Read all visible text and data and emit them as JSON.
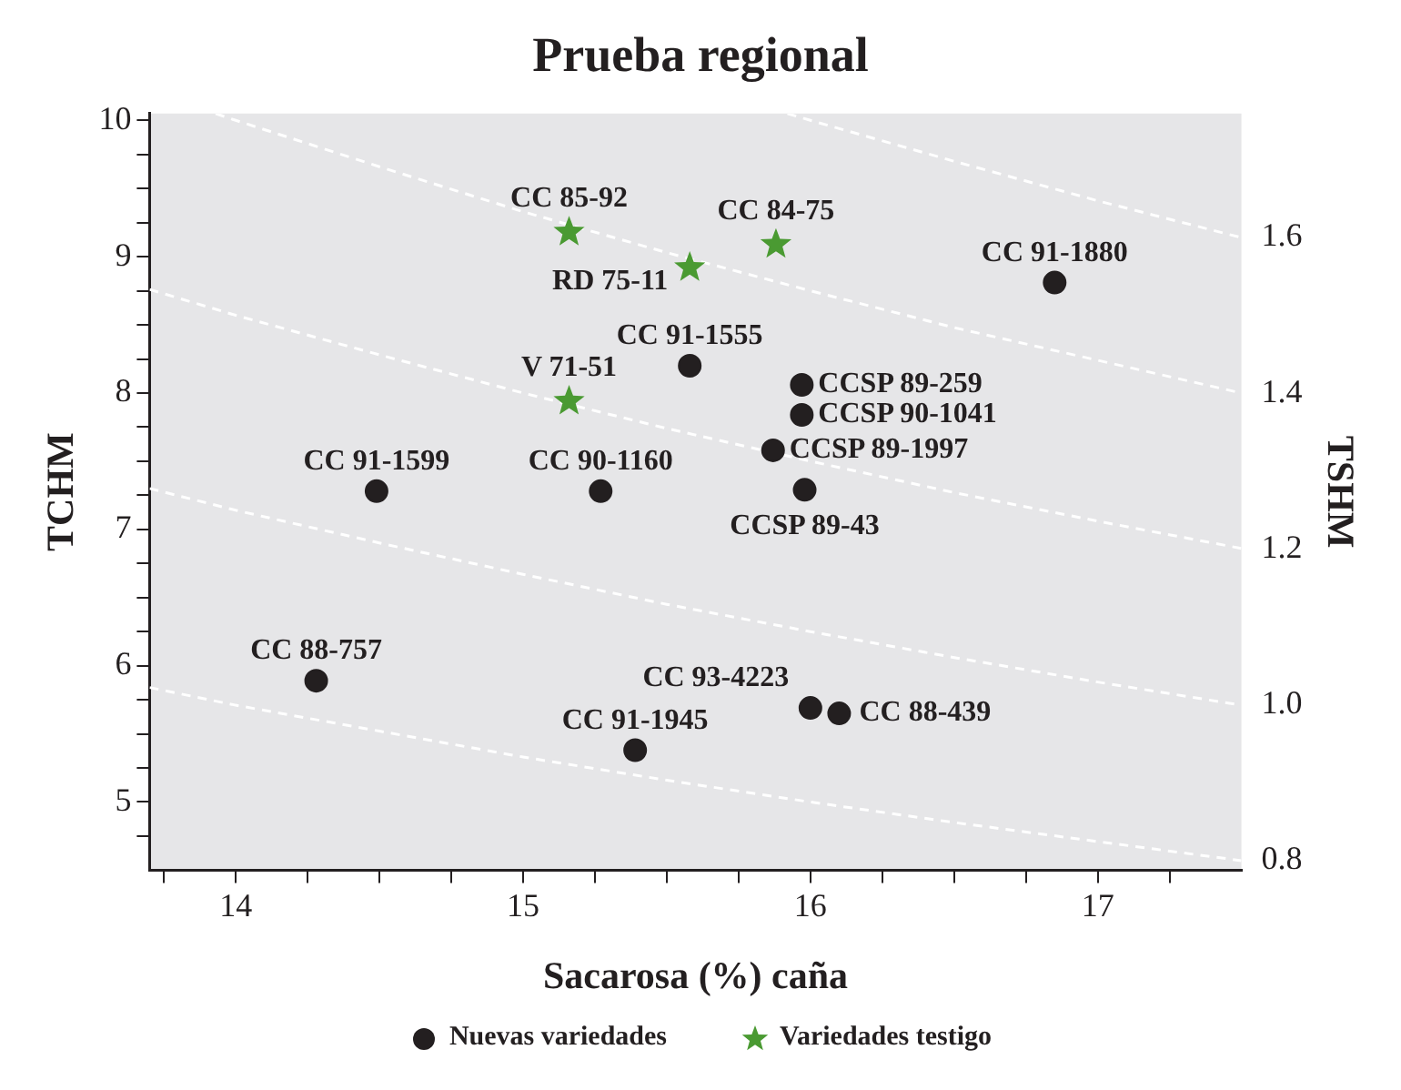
{
  "chart_data": {
    "type": "scatter",
    "title": "Prueba regional",
    "xlabel": "Sacarosa (%) caña",
    "ylabel": "TCHM",
    "y2label": "TSHM",
    "xlim": [
      13.7,
      17.5
    ],
    "xticks": [
      {
        "value": 13.75,
        "label": null
      },
      {
        "value": 14,
        "label": "14"
      },
      {
        "value": 14.25,
        "label": null
      },
      {
        "value": 14.5,
        "label": null
      },
      {
        "value": 14.75,
        "label": null
      },
      {
        "value": 15,
        "label": "15"
      },
      {
        "value": 15.25,
        "label": null
      },
      {
        "value": 15.5,
        "label": null
      },
      {
        "value": 15.75,
        "label": null
      },
      {
        "value": 16,
        "label": "16"
      },
      {
        "value": 16.25,
        "label": null
      },
      {
        "value": 16.5,
        "label": null
      },
      {
        "value": 16.75,
        "label": null
      },
      {
        "value": 17,
        "label": "17"
      },
      {
        "value": 17.25,
        "label": null
      }
    ],
    "ylim": [
      4.5,
      10.05
    ],
    "yticks": [
      {
        "value": 4.75,
        "label": null
      },
      {
        "value": 5,
        "label": "5"
      },
      {
        "value": 5.25,
        "label": null
      },
      {
        "value": 5.5,
        "label": null
      },
      {
        "value": 5.75,
        "label": null
      },
      {
        "value": 6,
        "label": "6"
      },
      {
        "value": 6.25,
        "label": null
      },
      {
        "value": 6.5,
        "label": null
      },
      {
        "value": 6.75,
        "label": null
      },
      {
        "value": 7,
        "label": "7"
      },
      {
        "value": 7.25,
        "label": null
      },
      {
        "value": 7.5,
        "label": null
      },
      {
        "value": 7.75,
        "label": null
      },
      {
        "value": 8,
        "label": "8"
      },
      {
        "value": 8.25,
        "label": null
      },
      {
        "value": 8.5,
        "label": null
      },
      {
        "value": 8.75,
        "label": null
      },
      {
        "value": 9,
        "label": "9"
      },
      {
        "value": 9.25,
        "label": null
      },
      {
        "value": 9.5,
        "label": null
      },
      {
        "value": 9.75,
        "label": null
      },
      {
        "value": 10,
        "label": "10"
      }
    ],
    "y2lim": [
      0.7875,
      1.759
    ],
    "y2ticks": [
      {
        "value": 0.8,
        "label": "0.8"
      },
      {
        "value": 1.0,
        "label": "1.0"
      },
      {
        "value": 1.2,
        "label": "1.2"
      },
      {
        "value": 1.4,
        "label": "1.4"
      },
      {
        "value": 1.6,
        "label": "1.6"
      }
    ],
    "grid": false,
    "legend": "bottom",
    "series": [
      {
        "name": "Nuevas variedades",
        "color": "#231f20",
        "marker": "circle",
        "x": [
          16.85,
          15.58,
          15.97,
          15.97,
          15.87,
          15.98,
          15.27,
          14.49,
          14.28,
          15.39,
          16.0,
          16.1
        ],
        "values": [
          8.81,
          8.2,
          8.06,
          7.84,
          7.58,
          7.29,
          7.28,
          7.28,
          5.89,
          5.38,
          5.69,
          5.65
        ]
      },
      {
        "name": "Variedades testigo",
        "color": "#4a9a32",
        "marker": "star",
        "x": [
          15.16,
          15.88,
          15.58,
          15.16
        ],
        "values": [
          9.18,
          9.09,
          8.92,
          7.94
        ]
      },
      {
        "type": "line",
        "color": "#ffffff",
        "line_style": "dashed",
        "marker": "none",
        "x": [
          15.92,
          16,
          16.5,
          17,
          17.5
        ],
        "values": [
          10.05,
          10.0,
          9.7,
          9.41,
          9.14
        ]
      },
      {
        "type": "line",
        "color": "#ffffff",
        "line_style": "dashed",
        "marker": "none",
        "x": [
          13.93,
          14,
          14.5,
          15,
          15.5,
          16,
          16.5,
          17,
          17.5
        ],
        "values": [
          10.05,
          10.0,
          9.66,
          9.33,
          9.03,
          8.75,
          8.48,
          8.24,
          8.0
        ]
      },
      {
        "type": "line",
        "color": "#ffffff",
        "line_style": "dashed",
        "marker": "none",
        "x": [
          13.7,
          14,
          14.5,
          15,
          15.5,
          16,
          16.5,
          17,
          17.5
        ],
        "values": [
          8.76,
          8.57,
          8.28,
          8.0,
          7.74,
          7.5,
          7.27,
          7.06,
          6.86
        ]
      },
      {
        "type": "line",
        "color": "#ffffff",
        "line_style": "dashed",
        "marker": "none",
        "x": [
          13.7,
          14,
          14.5,
          15,
          15.5,
          16,
          16.5,
          17,
          17.5
        ],
        "values": [
          7.3,
          7.14,
          6.9,
          6.67,
          6.45,
          6.25,
          6.06,
          5.88,
          5.71
        ]
      },
      {
        "type": "line",
        "color": "#ffffff",
        "line_style": "dashed",
        "marker": "none",
        "x": [
          13.7,
          14,
          14.5,
          15,
          15.5,
          16,
          16.5,
          17,
          17.5
        ],
        "values": [
          5.84,
          5.71,
          5.52,
          5.33,
          5.16,
          5.0,
          4.85,
          4.71,
          4.57
        ]
      }
    ],
    "annotations": [
      {
        "text": "CC 91-1880",
        "x": 16.85,
        "y": 8.81
      },
      {
        "text": "CC 91-1555",
        "x": 15.58,
        "y": 8.2
      },
      {
        "text": "CCSP 89-259",
        "x": 15.97,
        "y": 8.06
      },
      {
        "text": "CCSP 90-1041",
        "x": 15.97,
        "y": 7.84
      },
      {
        "text": "CCSP 89-1997",
        "x": 15.87,
        "y": 7.58
      },
      {
        "text": "CCSP 89-43",
        "x": 15.98,
        "y": 7.29
      },
      {
        "text": "CC 90-1160",
        "x": 15.27,
        "y": 7.28
      },
      {
        "text": "CC 91-1599",
        "x": 14.49,
        "y": 7.28
      },
      {
        "text": "CC 88-757",
        "x": 14.28,
        "y": 5.89
      },
      {
        "text": "CC 91-1945",
        "x": 15.39,
        "y": 5.38
      },
      {
        "text": "CC 93-4223",
        "x": 16.0,
        "y": 5.69
      },
      {
        "text": "CC 88-439",
        "x": 16.1,
        "y": 5.65
      },
      {
        "text": "CC 85-92",
        "x": 15.16,
        "y": 9.18
      },
      {
        "text": "CC 84-75",
        "x": 15.88,
        "y": 9.09
      },
      {
        "text": "RD 75-11",
        "x": 15.58,
        "y": 8.92
      },
      {
        "text": "V 71-51",
        "x": 15.16,
        "y": 7.94
      }
    ]
  }
}
